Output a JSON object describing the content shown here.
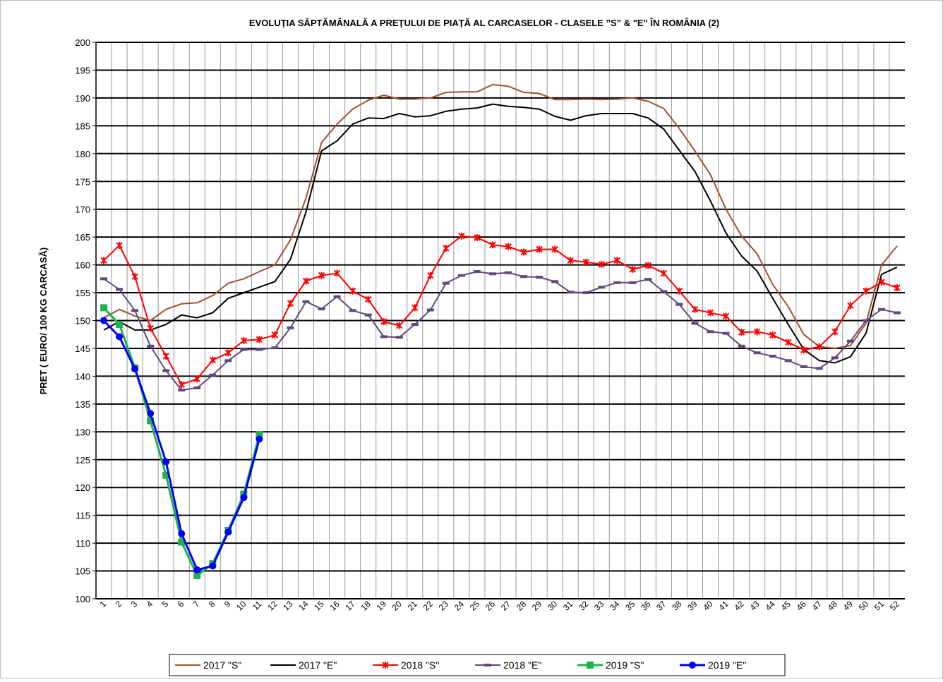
{
  "chart_data": {
    "type": "line",
    "title": "EVOLUȚIA SĂPTĂMÂNALĂ A PREȚULUI  DE PIAȚĂ  AL CARCASELOR  - CLASELE ”S” & \"E\"  ÎN ROMÂNIA (2)",
    "y_label": "PRET ( EURO/ 100 KG CARCASĂ)",
    "categories": [
      "1",
      "2",
      "3",
      "4",
      "5",
      "6",
      "7",
      "8",
      "9",
      "10",
      "11",
      "12",
      "13",
      "14",
      "15",
      "16",
      "17",
      "18",
      "19",
      "20",
      "21",
      "22",
      "23",
      "24",
      "25",
      "26",
      "27",
      "28",
      "29",
      "30",
      "31",
      "32",
      "33",
      "34",
      "35",
      "36",
      "37",
      "38",
      "39",
      "40",
      "41",
      "42",
      "43",
      "44",
      "45",
      "46",
      "47",
      "48",
      "49",
      "50",
      "51",
      "52"
    ],
    "ylim": [
      100,
      200
    ],
    "yticks": [
      100,
      105,
      110,
      115,
      120,
      125,
      130,
      135,
      140,
      145,
      150,
      155,
      160,
      165,
      170,
      175,
      180,
      185,
      190,
      195,
      200
    ],
    "grid": true,
    "legend": "bottom",
    "series": [
      {
        "name": "2017 \"S\"",
        "color": "#a0522d",
        "marker": "none",
        "values": [
          150.5,
          152,
          150.8,
          150,
          152,
          153,
          153.2,
          154.5,
          156.7,
          157.5,
          158.8,
          160,
          164.5,
          172,
          182,
          185.3,
          188,
          189.6,
          190.5,
          189.8,
          189.8,
          190,
          191,
          191.1,
          191.1,
          192.4,
          192.1,
          191,
          190.8,
          189.7,
          189.7,
          189.8,
          189.7,
          189.8,
          190,
          189.4,
          188.1,
          184.5,
          180.5,
          176.2,
          170,
          165.2,
          162,
          156.5,
          152.5,
          147.5,
          145.3,
          145,
          145.5,
          149.5,
          160,
          163.4
        ]
      },
      {
        "name": "2017 \"E\"",
        "color": "#000000",
        "marker": "none",
        "values": [
          148.3,
          149.8,
          148.3,
          148.3,
          149.3,
          151,
          150.5,
          151.4,
          154,
          155,
          156,
          157,
          161,
          169.5,
          180.5,
          182.3,
          185.3,
          186.4,
          186.3,
          187.2,
          186.6,
          186.8,
          187.6,
          188,
          188.2,
          188.9,
          188.5,
          188.3,
          188,
          186.7,
          186,
          186.8,
          187.2,
          187.2,
          187.2,
          186.4,
          184.4,
          180.6,
          176.8,
          171.5,
          165.7,
          161.6,
          158.9,
          154,
          149.3,
          144.8,
          142.8,
          142.4,
          143.5,
          147.7,
          158.3,
          159.6
        ]
      },
      {
        "name": "2018 \"S\"",
        "color": "#ff0000",
        "marker": "x",
        "values": [
          160.8,
          163.5,
          157.9,
          148.6,
          143.6,
          138.5,
          139.5,
          142.9,
          144.2,
          146.4,
          146.6,
          147.4,
          153.1,
          157.1,
          158.1,
          158.5,
          155.3,
          153.8,
          149.8,
          149.1,
          152.3,
          158.1,
          163,
          165.2,
          164.9,
          163.6,
          163.3,
          162.3,
          162.8,
          162.8,
          160.8,
          160.5,
          160.1,
          160.8,
          159.2,
          159.9,
          158.5,
          155.3,
          152,
          151.4,
          150.8,
          147.9,
          148,
          147.4,
          146.1,
          144.7,
          145.3,
          148,
          152.7,
          155.3,
          156.9,
          155.9
        ]
      },
      {
        "name": "2018 \"E\"",
        "color": "#604a7b",
        "marker": "dash",
        "values": [
          157.5,
          155.6,
          151.8,
          145.4,
          141,
          137.5,
          137.9,
          140.2,
          142.8,
          144.8,
          144.8,
          145.1,
          148.7,
          153.4,
          152.1,
          154.3,
          151.8,
          151,
          147.1,
          147,
          149.3,
          151.9,
          156.7,
          158.1,
          158.8,
          158.4,
          158.6,
          157.9,
          157.8,
          157,
          155.1,
          155,
          156,
          156.8,
          156.8,
          157.4,
          155.2,
          152.9,
          149.5,
          148,
          147.7,
          145.4,
          144.2,
          143.6,
          142.8,
          141.7,
          141.4,
          143.3,
          146.3,
          150,
          152,
          151.4
        ]
      },
      {
        "name": "2019 \"S\"",
        "color": "#1db34b",
        "marker": "square",
        "values": [
          152.3,
          149.3,
          141.5,
          132,
          122.2,
          110.2,
          104.2,
          106.3,
          112.3,
          118.8,
          129.5,
          null,
          null,
          null,
          null,
          null,
          null,
          null,
          null,
          null,
          null,
          null,
          null,
          null,
          null,
          null,
          null,
          null,
          null,
          null,
          null,
          null,
          null,
          null,
          null,
          null,
          null,
          null,
          null,
          null,
          null,
          null,
          null,
          null,
          null,
          null,
          null,
          null,
          null,
          null,
          null,
          null
        ]
      },
      {
        "name": "2019 \"E\"",
        "color": "#0000ff",
        "marker": "circle",
        "values": [
          150,
          147.1,
          141.3,
          133.3,
          124.6,
          111.7,
          105.2,
          105.9,
          112,
          118.2,
          128.7,
          null,
          null,
          null,
          null,
          null,
          null,
          null,
          null,
          null,
          null,
          null,
          null,
          null,
          null,
          null,
          null,
          null,
          null,
          null,
          null,
          null,
          null,
          null,
          null,
          null,
          null,
          null,
          null,
          null,
          null,
          null,
          null,
          null,
          null,
          null,
          null,
          null,
          null,
          null,
          null,
          null
        ]
      }
    ]
  }
}
